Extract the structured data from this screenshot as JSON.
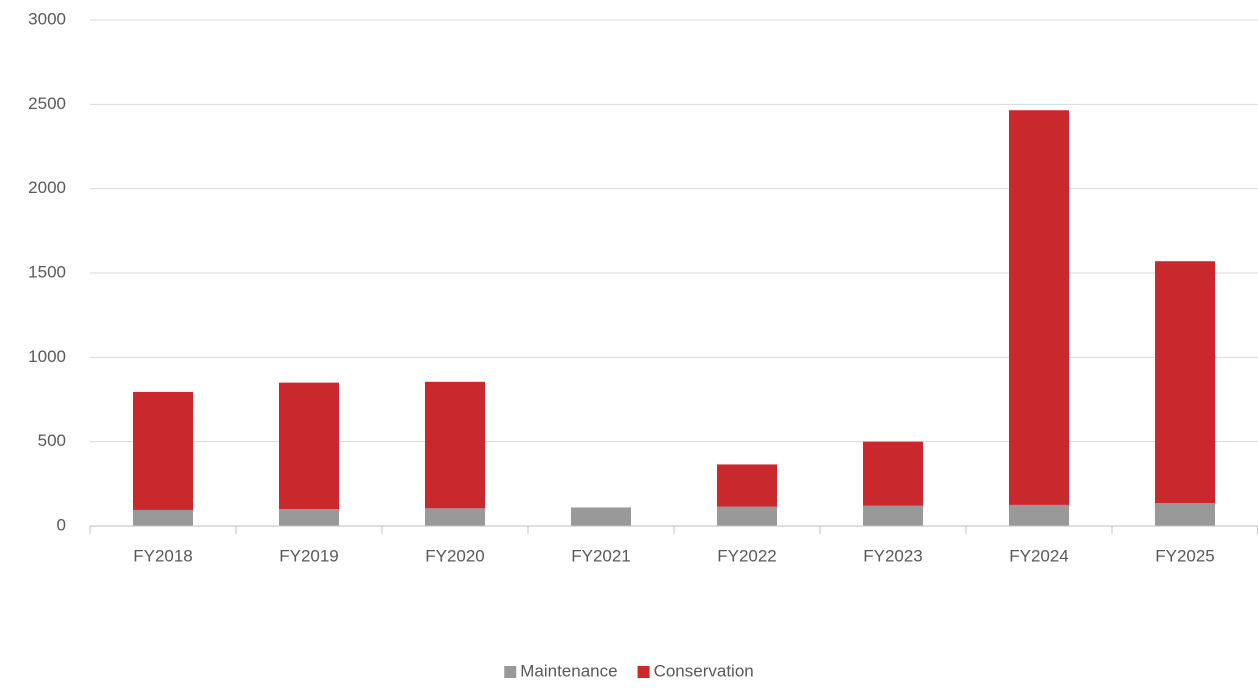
{
  "chart_data": {
    "type": "stacked_bar",
    "categories": [
      "FY2018",
      "FY2019",
      "FY2020",
      "FY2021",
      "FY2022",
      "FY2023",
      "FY2024",
      "FY2025"
    ],
    "series": [
      {
        "name": "Maintenance",
        "color": "#999999",
        "values": [
          95,
          100,
          105,
          110,
          115,
          120,
          125,
          135
        ]
      },
      {
        "name": "Conservation",
        "color": "#c9282d",
        "values": [
          700,
          750,
          750,
          0,
          250,
          380,
          2340,
          1435
        ]
      }
    ],
    "ylim": [
      0,
      3000
    ],
    "yticks": [
      0,
      500,
      1000,
      1500,
      2000,
      2500,
      3000
    ],
    "grid": true,
    "legend": "bottom"
  }
}
